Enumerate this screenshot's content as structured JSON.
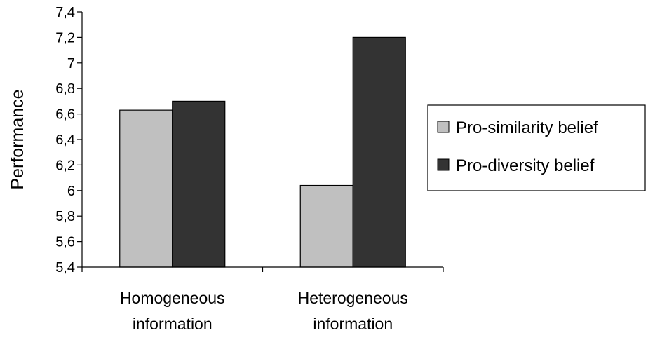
{
  "chart_data": {
    "type": "bar",
    "title": "",
    "xlabel": "",
    "ylabel": "Performance",
    "ylim": [
      5.4,
      7.4
    ],
    "yticks": [
      "5,4",
      "5,6",
      "5,8",
      "6",
      "6,2",
      "6,4",
      "6,6",
      "6,8",
      "7",
      "7,2",
      "7,4"
    ],
    "categories": [
      [
        "Homogeneous",
        "information"
      ],
      [
        "Heterogeneous",
        "information"
      ]
    ],
    "series": [
      {
        "name": "Pro-similarity belief",
        "values": [
          6.63,
          6.04
        ],
        "color": "#c0c0c0"
      },
      {
        "name": "Pro-diversity belief",
        "values": [
          6.7,
          7.2
        ],
        "color": "#333333"
      }
    ],
    "grid": false,
    "legend": "right"
  }
}
